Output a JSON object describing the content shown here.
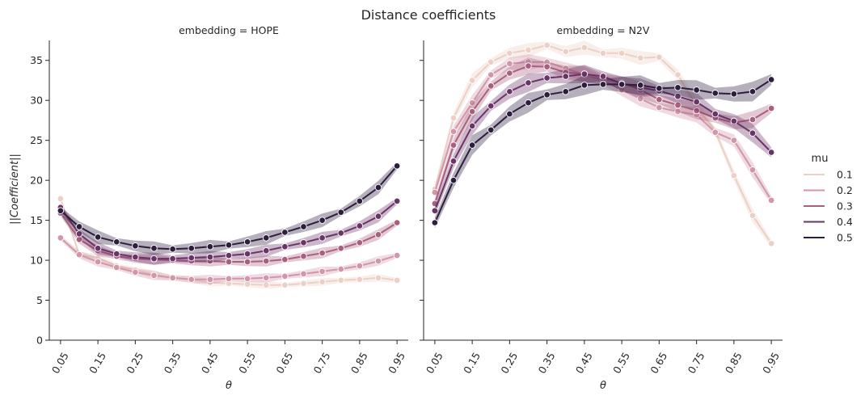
{
  "figure": {
    "title": "Distance coefficients",
    "legend_title": "mu",
    "legend_placement": "right",
    "series_colors": [
      "#ecd0c5",
      "#d196a8",
      "#a9607f",
      "#6b3468",
      "#2d1e3e"
    ]
  },
  "chart_data": [
    {
      "type": "line",
      "title": "embedding = HOPE",
      "xlabel": "θ",
      "ylabel": "||Coefficient||",
      "ylim": [
        0,
        37.5
      ],
      "yticks": [
        0,
        5,
        10,
        15,
        20,
        25,
        30,
        35
      ],
      "xticks": [
        "0.05",
        "0.15",
        "0.25",
        "0.35",
        "0.45",
        "0.55",
        "0.65",
        "0.75",
        "0.85",
        "0.95"
      ],
      "x": [
        0.05,
        0.1,
        0.15,
        0.2,
        0.25,
        0.3,
        0.35,
        0.4,
        0.45,
        0.5,
        0.55,
        0.6,
        0.65,
        0.7,
        0.75,
        0.8,
        0.85,
        0.9,
        0.95
      ],
      "grid": false,
      "series": [
        {
          "name": "0.1",
          "values": [
            17.7,
            10.7,
            10.3,
            9.3,
            8.8,
            8.2,
            7.8,
            7.6,
            7.2,
            7.1,
            7.0,
            6.9,
            6.9,
            7.1,
            7.3,
            7.5,
            7.6,
            7.8,
            7.5
          ]
        },
        {
          "name": "0.2",
          "values": [
            12.8,
            10.7,
            9.8,
            9.1,
            8.5,
            8.1,
            7.8,
            7.6,
            7.6,
            7.7,
            7.7,
            7.8,
            8.0,
            8.3,
            8.6,
            8.9,
            9.3,
            9.9,
            10.6
          ]
        },
        {
          "name": "0.3",
          "values": [
            15.9,
            12.6,
            11.2,
            10.5,
            10.2,
            10.1,
            10.0,
            9.9,
            9.9,
            9.8,
            9.8,
            9.9,
            10.1,
            10.5,
            10.9,
            11.5,
            12.2,
            13.2,
            14.7
          ]
        },
        {
          "name": "0.4",
          "values": [
            16.6,
            13.3,
            11.5,
            10.8,
            10.4,
            10.2,
            10.2,
            10.3,
            10.4,
            10.6,
            10.8,
            11.2,
            11.7,
            12.2,
            12.8,
            13.4,
            14.3,
            15.5,
            17.4
          ]
        },
        {
          "name": "0.5",
          "values": [
            16.2,
            14.2,
            12.9,
            12.3,
            11.8,
            11.5,
            11.4,
            11.5,
            11.7,
            11.9,
            12.3,
            12.8,
            13.5,
            14.2,
            15.0,
            16.0,
            17.4,
            19.1,
            21.8
          ]
        }
      ]
    },
    {
      "type": "line",
      "title": "embedding = N2V",
      "xlabel": "θ",
      "ylabel": "",
      "ylim": [
        0,
        37.5
      ],
      "yticks": [
        0,
        5,
        10,
        15,
        20,
        25,
        30,
        35
      ],
      "xticks": [
        "0.05",
        "0.15",
        "0.25",
        "0.35",
        "0.45",
        "0.55",
        "0.65",
        "0.75",
        "0.85",
        "0.95"
      ],
      "x": [
        0.05,
        0.1,
        0.15,
        0.2,
        0.25,
        0.3,
        0.35,
        0.4,
        0.45,
        0.5,
        0.55,
        0.6,
        0.65,
        0.7,
        0.75,
        0.8,
        0.85,
        0.9,
        0.95
      ],
      "grid": false,
      "series": [
        {
          "name": "0.1",
          "values": [
            18.9,
            27.8,
            32.5,
            34.8,
            35.9,
            36.3,
            36.9,
            36.1,
            36.6,
            35.9,
            35.9,
            35.3,
            35.4,
            33.2,
            29.3,
            26.1,
            20.6,
            15.6,
            12.1
          ]
        },
        {
          "name": "0.2",
          "values": [
            18.5,
            26.1,
            29.7,
            33.2,
            34.6,
            34.8,
            34.8,
            34.0,
            33.2,
            32.5,
            31.3,
            30.2,
            29.1,
            28.6,
            28.2,
            26.0,
            25.0,
            21.3,
            17.5
          ]
        },
        {
          "name": "0.3",
          "values": [
            17.1,
            24.4,
            28.6,
            31.8,
            33.4,
            34.3,
            34.2,
            33.5,
            33.3,
            32.7,
            32.2,
            31.3,
            30.1,
            29.4,
            28.7,
            27.8,
            27.2,
            27.6,
            29.0
          ]
        },
        {
          "name": "0.4",
          "values": [
            16.2,
            22.4,
            26.8,
            29.3,
            31.1,
            32.2,
            32.8,
            33.0,
            33.3,
            33.0,
            32.1,
            31.6,
            31.2,
            30.5,
            29.8,
            28.3,
            27.4,
            25.9,
            23.5
          ]
        },
        {
          "name": "0.5",
          "values": [
            14.7,
            20.0,
            24.4,
            26.3,
            28.3,
            29.7,
            30.7,
            31.1,
            31.9,
            32.0,
            32.0,
            31.9,
            31.5,
            31.6,
            31.3,
            30.9,
            30.8,
            31.1,
            32.6
          ]
        }
      ]
    }
  ]
}
